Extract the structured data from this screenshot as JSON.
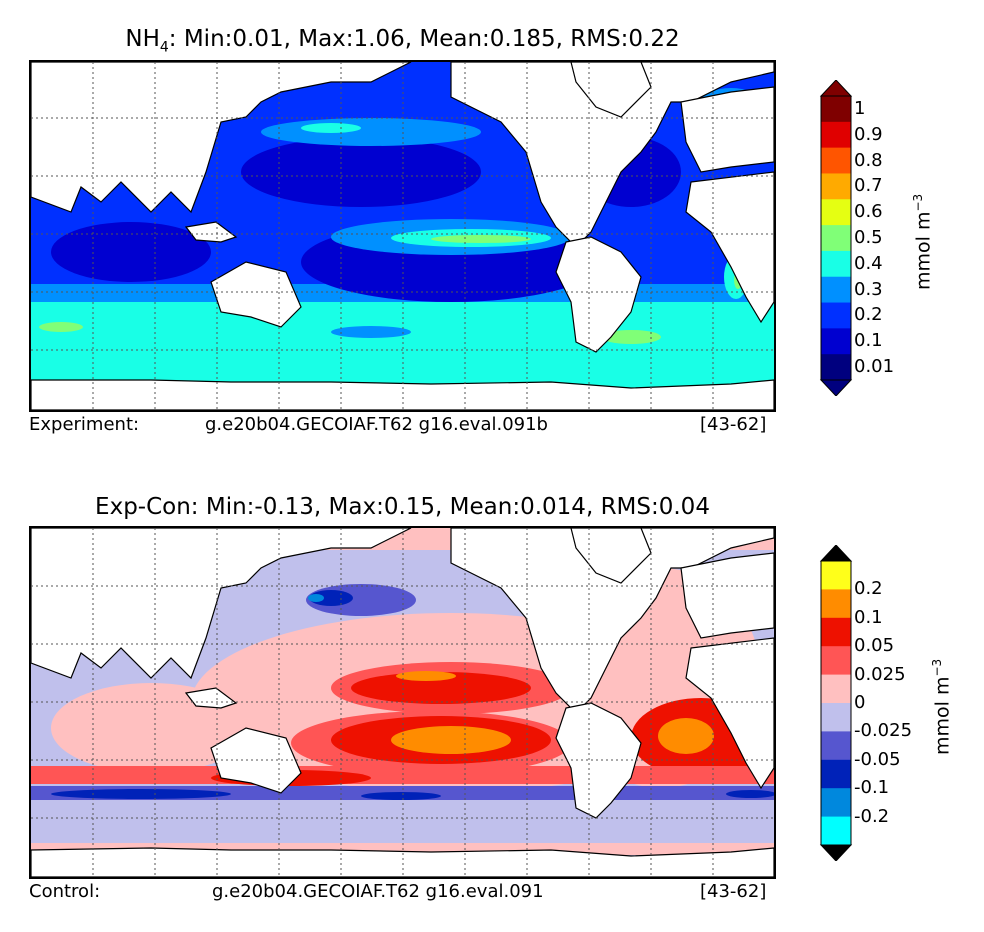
{
  "panel1": {
    "title_species": "NH",
    "title_sub": "4",
    "title_stats": ": Min:0.01, Max:1.06, Mean:0.185, RMS:0.22",
    "footer_left": "Experiment:",
    "footer_case": "g.e20b04.GECOIAF.T62 g16.eval.091b",
    "footer_years": "[43-62]",
    "colorbar": {
      "labels": [
        "1",
        "0.9",
        "0.8",
        "0.7",
        "0.6",
        "0.5",
        "0.4",
        "0.3",
        "0.2",
        "0.1",
        "0.01"
      ],
      "colors": [
        "#7f0000",
        "#e00000",
        "#ff5500",
        "#ffaa00",
        "#e5ff12",
        "#80ff77",
        "#19ffe6",
        "#0090ff",
        "#0030ff",
        "#0000d0",
        "#00007f"
      ],
      "over_color": "#7f0000",
      "under_color": "#00007f",
      "units": "mmol m",
      "units_exp": "−3"
    }
  },
  "panel2": {
    "title": "Exp-Con: Min:-0.13, Max:0.15, Mean:0.014, RMS:0.04",
    "footer_left": "Control:",
    "footer_case": "g.e20b04.GECOIAF.T62 g16.eval.091",
    "footer_years": "[43-62]",
    "colorbar": {
      "labels": [
        "0.2",
        "0.1",
        "0.05",
        "0.025",
        "0",
        "-0.025",
        "-0.05",
        "-0.1",
        "-0.2"
      ],
      "colors": [
        "#ffff1a",
        "#ff8c00",
        "#ee1100",
        "#ff5555",
        "#ffc0c0",
        "#c0c0ec",
        "#5656cf",
        "#0022b8",
        "#0088dd",
        "#00ffff"
      ],
      "over_color": "#000000",
      "under_color": "#000000",
      "units": "mmol m",
      "units_exp": "−3"
    }
  }
}
